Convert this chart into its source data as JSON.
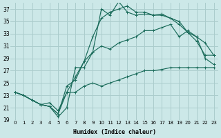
{
  "xlabel": "Humidex (Indice chaleur)",
  "bg_color": "#cce8e8",
  "grid_color": "#aacccc",
  "line_color": "#1a6b5a",
  "xlim": [
    -0.5,
    23.5
  ],
  "ylim": [
    19,
    38
  ],
  "yticks": [
    19,
    21,
    23,
    25,
    27,
    29,
    31,
    33,
    35,
    37
  ],
  "xticks": [
    0,
    1,
    2,
    3,
    4,
    5,
    6,
    7,
    8,
    9,
    10,
    11,
    12,
    13,
    14,
    15,
    16,
    17,
    18,
    19,
    20,
    21,
    22,
    23
  ],
  "line1_x": [
    0,
    1,
    2,
    3,
    4,
    5,
    6,
    7,
    8,
    9,
    10,
    11,
    12,
    13,
    14,
    15,
    16,
    17,
    18,
    19,
    20,
    21,
    22,
    23
  ],
  "line1_y": [
    23.5,
    23.0,
    22.2,
    21.5,
    21.2,
    19.5,
    21.0,
    27.5,
    27.5,
    30.0,
    37.0,
    36.0,
    38.2,
    36.5,
    36.0,
    36.2,
    36.0,
    36.2,
    35.5,
    35.0,
    33.2,
    31.8,
    29.5,
    29.5
  ],
  "line2_x": [
    0,
    1,
    2,
    3,
    4,
    5,
    6,
    7,
    8,
    9,
    10,
    11,
    12,
    13,
    14,
    15,
    16,
    17,
    18,
    19,
    20,
    21,
    22,
    23
  ],
  "line2_y": [
    23.5,
    23.0,
    22.2,
    21.5,
    21.8,
    20.5,
    23.5,
    26.0,
    28.5,
    32.5,
    35.5,
    36.5,
    37.0,
    37.5,
    36.5,
    36.5,
    36.0,
    36.0,
    35.5,
    34.5,
    33.2,
    32.5,
    31.5,
    29.5
  ],
  "line3_x": [
    0,
    1,
    2,
    3,
    4,
    5,
    6,
    7,
    8,
    9,
    10,
    11,
    12,
    13,
    14,
    15,
    16,
    17,
    18,
    19,
    20,
    21,
    22,
    23
  ],
  "line3_y": [
    23.5,
    23.0,
    22.2,
    21.5,
    21.2,
    20.0,
    24.5,
    25.5,
    28.5,
    30.0,
    31.0,
    30.5,
    31.5,
    32.0,
    32.5,
    33.5,
    33.5,
    34.0,
    34.5,
    32.5,
    33.5,
    32.5,
    29.0,
    28.0
  ],
  "line4_x": [
    0,
    1,
    2,
    3,
    4,
    5,
    6,
    7,
    8,
    9,
    10,
    11,
    12,
    13,
    14,
    15,
    16,
    17,
    18,
    19,
    20,
    21,
    22,
    23
  ],
  "line4_y": [
    23.5,
    23.0,
    22.2,
    21.5,
    21.2,
    20.0,
    23.5,
    23.5,
    24.5,
    25.0,
    24.5,
    25.0,
    25.5,
    26.0,
    26.5,
    27.0,
    27.0,
    27.2,
    27.5,
    27.5,
    27.5,
    27.5,
    27.5,
    27.5
  ]
}
